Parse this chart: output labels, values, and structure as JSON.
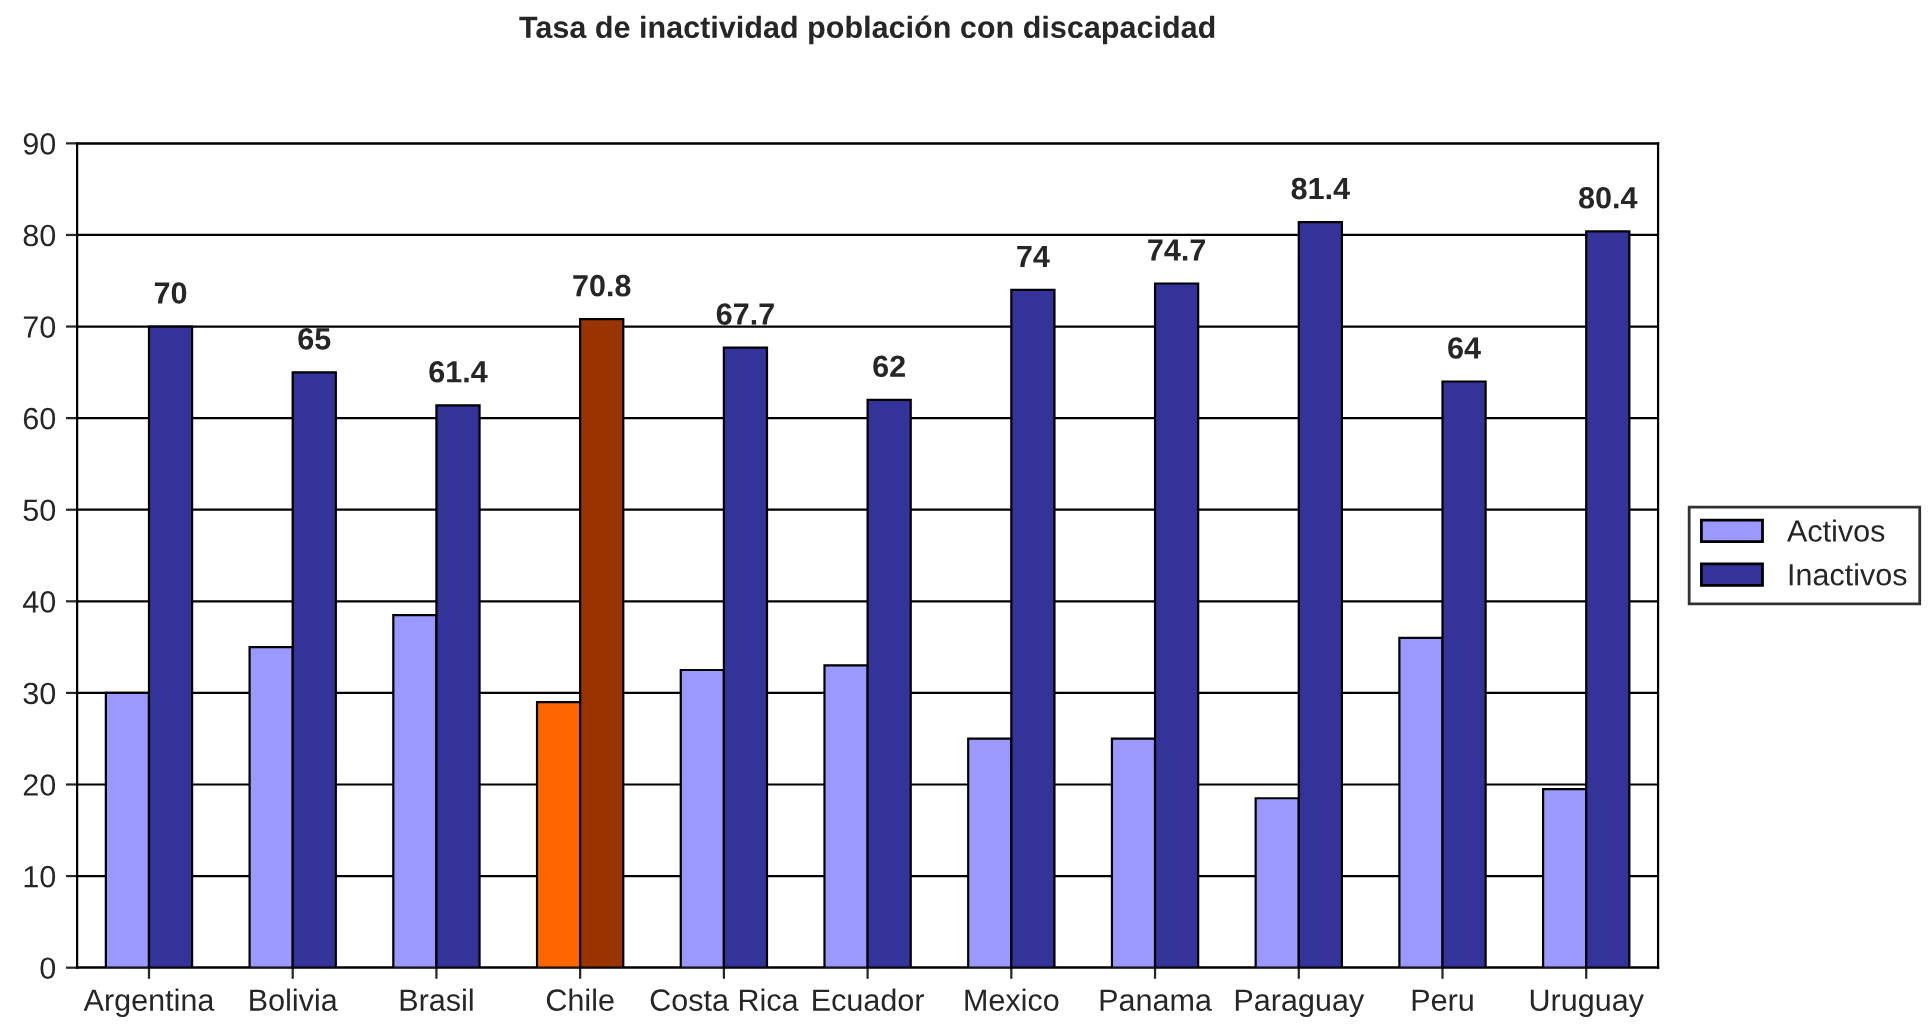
{
  "chart_data": {
    "type": "bar",
    "title": "Tasa de inactividad población con discapacidad",
    "categories": [
      "Argentina",
      "Bolivia",
      "Brasil",
      "Chile",
      "Costa Rica",
      "Ecuador",
      "Mexico",
      "Panama",
      "Paraguay",
      "Peru",
      "Uruguay"
    ],
    "series": [
      {
        "name": "Activos",
        "color": "#9999ff",
        "colors": [
          "#9999ff",
          "#9999ff",
          "#9999ff",
          "#ff6600",
          "#9999ff",
          "#9999ff",
          "#9999ff",
          "#9999ff",
          "#9999ff",
          "#9999ff",
          "#9999ff"
        ],
        "values": [
          30,
          35,
          38.5,
          29,
          32.5,
          33,
          25,
          25,
          18.5,
          36,
          19.5
        ]
      },
      {
        "name": "Inactivos",
        "color": "#333399",
        "colors": [
          "#333399",
          "#333399",
          "#333399",
          "#993300",
          "#333399",
          "#333399",
          "#333399",
          "#333399",
          "#333399",
          "#333399",
          "#333399"
        ],
        "values": [
          70,
          65,
          61.4,
          70.8,
          67.7,
          62,
          74,
          74.7,
          81.4,
          64,
          80.4
        ],
        "value_labels": [
          "70",
          "65",
          "61.4",
          "70.8",
          "67.7",
          "62",
          "74",
          "74.7",
          "81.4",
          "64",
          "80.4"
        ]
      }
    ],
    "ylim": [
      0,
      90
    ],
    "yticks": [
      0,
      10,
      20,
      30,
      40,
      50,
      60,
      70,
      80,
      90
    ],
    "grid": "y",
    "legend": "right"
  }
}
